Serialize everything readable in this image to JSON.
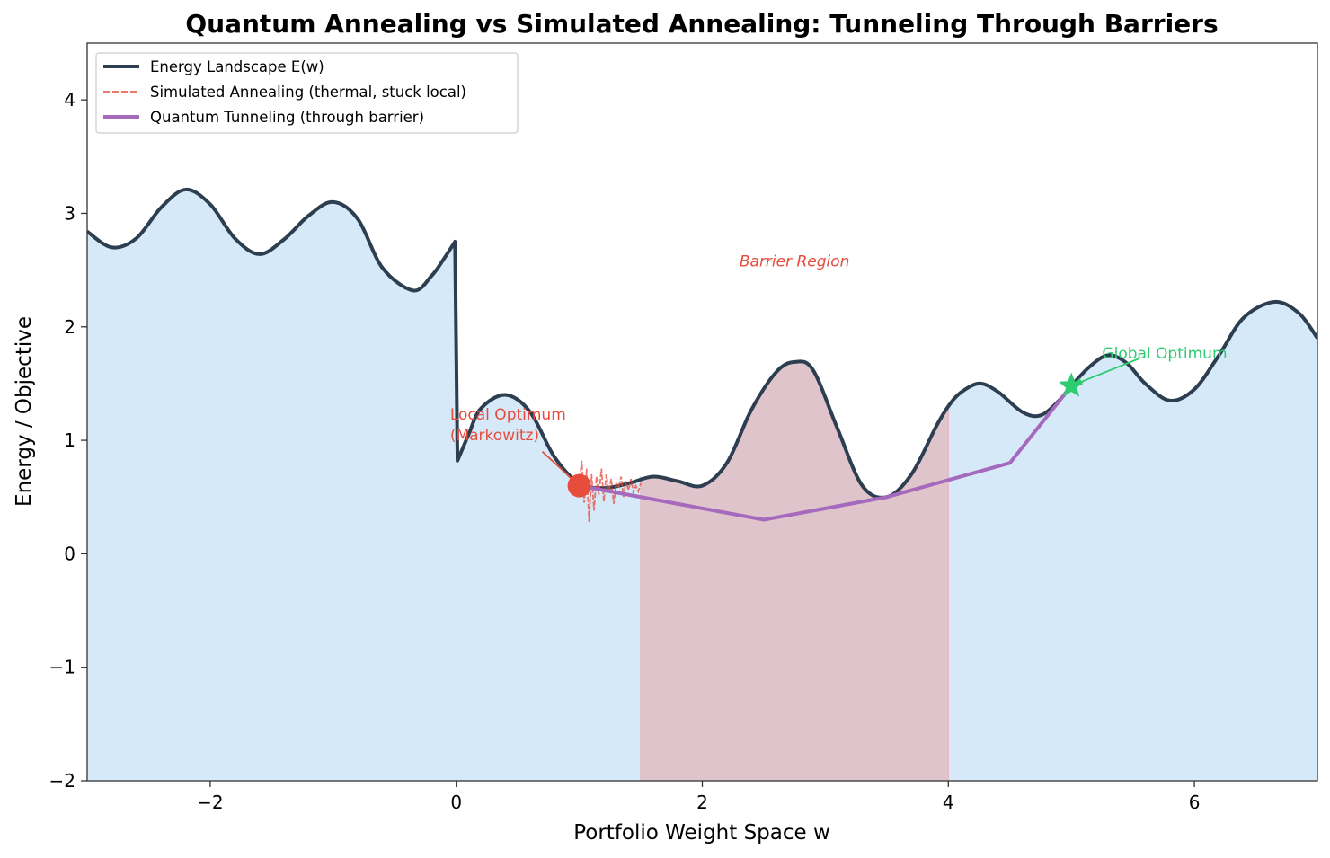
{
  "chart_data": {
    "type": "line",
    "title": "Quantum Annealing vs Simulated Annealing: Tunneling Through Barriers",
    "xlabel": "Portfolio Weight Space w",
    "ylabel": "Energy / Objective",
    "xlim": [
      -3,
      7
    ],
    "ylim": [
      -2,
      4.5
    ],
    "x_ticks": [
      -2,
      0,
      2,
      4,
      6
    ],
    "x_tick_labels": [
      "−2",
      "0",
      "2",
      "4",
      "6"
    ],
    "y_ticks": [
      -2,
      -1,
      0,
      1,
      2,
      3,
      4
    ],
    "y_tick_labels": [
      "−2",
      "−1",
      "0",
      "1",
      "2",
      "3",
      "4"
    ],
    "grid": false,
    "legend_position": "top-left",
    "series": [
      {
        "name": "Energy Landscape E(w)",
        "style": "solid",
        "color": "#2c3e50",
        "x": [
          -3.0,
          -2.8,
          -2.6,
          -2.4,
          -2.2,
          -2.0,
          -1.8,
          -1.6,
          -1.4,
          -1.2,
          -1.0,
          -0.8,
          -0.6,
          -0.35,
          -0.2,
          -0.1,
          -0.01,
          0.01,
          0.1,
          0.2,
          0.4,
          0.6,
          0.8,
          1.0,
          1.2,
          1.4,
          1.6,
          1.8,
          2.0,
          2.2,
          2.4,
          2.6,
          2.75,
          2.9,
          3.1,
          3.3,
          3.5,
          3.7,
          3.9,
          4.0,
          4.1,
          4.25,
          4.4,
          4.6,
          4.75,
          4.9,
          5.0,
          5.15,
          5.3,
          5.45,
          5.6,
          5.8,
          6.0,
          6.2,
          6.4,
          6.65,
          6.85,
          7.0
        ],
        "y": [
          2.84,
          2.7,
          2.78,
          3.05,
          3.21,
          3.08,
          2.78,
          2.64,
          2.77,
          2.98,
          3.1,
          2.95,
          2.52,
          2.32,
          2.45,
          2.6,
          2.75,
          0.82,
          1.05,
          1.28,
          1.4,
          1.25,
          0.85,
          0.62,
          0.58,
          0.62,
          0.68,
          0.64,
          0.6,
          0.8,
          1.27,
          1.6,
          1.69,
          1.62,
          1.1,
          0.6,
          0.5,
          0.7,
          1.12,
          1.3,
          1.42,
          1.5,
          1.43,
          1.25,
          1.22,
          1.35,
          1.48,
          1.65,
          1.75,
          1.68,
          1.5,
          1.35,
          1.45,
          1.75,
          2.08,
          2.22,
          2.12,
          1.9
        ]
      },
      {
        "name": "Simulated Annealing (thermal, stuck local)",
        "style": "dashed",
        "color": "#e74c3c",
        "x": [
          1.0,
          1.02,
          1.04,
          1.06,
          1.08,
          1.1,
          1.12,
          1.14,
          1.16,
          1.18,
          1.2,
          1.22,
          1.24,
          1.26,
          1.28,
          1.3,
          1.32,
          1.34,
          1.36,
          1.38,
          1.4,
          1.42,
          1.44,
          1.46,
          1.48,
          1.5
        ],
        "y": [
          0.6,
          0.82,
          0.45,
          0.75,
          0.28,
          0.7,
          0.38,
          0.68,
          0.52,
          0.75,
          0.46,
          0.7,
          0.55,
          0.66,
          0.44,
          0.62,
          0.58,
          0.68,
          0.5,
          0.64,
          0.56,
          0.66,
          0.54,
          0.6,
          0.55,
          0.62
        ]
      },
      {
        "name": "Quantum Tunneling (through barrier)",
        "style": "solid",
        "color": "#a569bd",
        "x": [
          1.0,
          2.5,
          3.5,
          4.5,
          5.0
        ],
        "y": [
          0.6,
          0.3,
          0.5,
          0.8,
          1.48
        ]
      }
    ],
    "shaded_regions": [
      {
        "type": "fill_under_curve",
        "color": "#d6e9f8"
      },
      {
        "type": "vspan",
        "x": [
          1.5,
          4.0
        ],
        "color": "#dfc5cb"
      }
    ],
    "annotations": [
      {
        "text": "Barrier Region",
        "x": 2.75,
        "y": 2.5,
        "color": "#e74c3c",
        "style": "italic"
      },
      {
        "text": "Local Optimum\n(Markowitz)",
        "x": -0.05,
        "y": 1.0,
        "target": [
          1.0,
          0.6
        ],
        "color": "#e74c3c"
      },
      {
        "text": "Global Optimum",
        "x": 5.25,
        "y": 1.72,
        "target": [
          5.0,
          1.48
        ],
        "color": "#2ecc71"
      }
    ],
    "markers": [
      {
        "name": "local-optimum",
        "x": 1.0,
        "y": 0.6,
        "shape": "circle",
        "color": "#e74c3c"
      },
      {
        "name": "global-optimum",
        "x": 5.0,
        "y": 1.48,
        "shape": "star",
        "color": "#2ecc71"
      }
    ]
  }
}
